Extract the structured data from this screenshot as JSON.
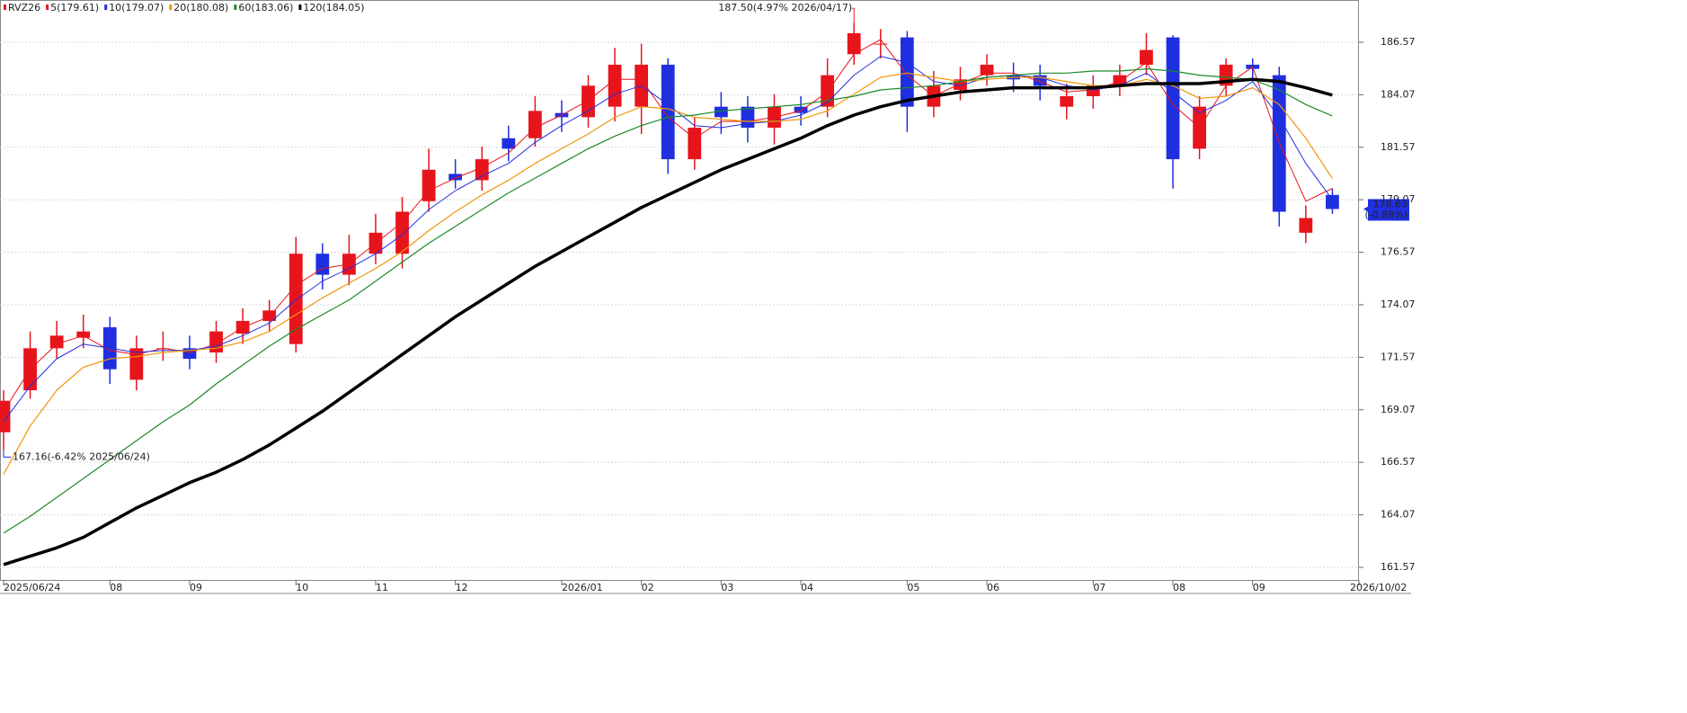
{
  "chart_data": {
    "type": "candlestick",
    "symbol": "RVZ26",
    "symbol_color": "#e8141c",
    "up_color": "#e8141c",
    "down_color": "#1f2fe0",
    "categories": [
      "2025/06/24",
      null,
      null,
      null,
      "08",
      null,
      null,
      "09",
      null,
      null,
      null,
      "10",
      null,
      null,
      "11",
      null,
      null,
      "12",
      null,
      null,
      null,
      "2026/01",
      null,
      null,
      "02",
      null,
      null,
      "03",
      null,
      null,
      "04",
      null,
      null,
      null,
      "05",
      null,
      null,
      "06",
      null,
      null,
      null,
      "07",
      null,
      null,
      "08",
      null,
      null,
      "09",
      null,
      null,
      null,
      "2026/10/02"
    ],
    "open": [
      168.0,
      170.0,
      172.0,
      172.5,
      173.0,
      170.5,
      172.0,
      172.0,
      171.8,
      172.7,
      173.3,
      172.2,
      176.5,
      175.5,
      176.5,
      176.5,
      179.0,
      180.3,
      180.0,
      182.0,
      182.0,
      183.2,
      183.0,
      183.5,
      183.5,
      185.5,
      181.0,
      183.5,
      183.5,
      182.5,
      183.5,
      183.5,
      186.0,
      186.5,
      186.8,
      183.5,
      184.3,
      185.0,
      185.0,
      185.0,
      183.5,
      184.0,
      184.5,
      185.5,
      186.8,
      181.5,
      184.5,
      185.5,
      185.0,
      177.5,
      179.3,
      null
    ],
    "high": [
      170.0,
      172.8,
      173.3,
      173.6,
      173.5,
      172.6,
      172.8,
      172.6,
      173.3,
      173.9,
      174.3,
      177.3,
      177.0,
      177.4,
      178.4,
      179.2,
      181.5,
      181.0,
      181.6,
      182.6,
      184.0,
      183.8,
      185.0,
      186.3,
      186.5,
      185.8,
      183.0,
      184.2,
      184.0,
      184.1,
      184.0,
      185.8,
      187.5,
      187.2,
      187.1,
      185.2,
      185.4,
      186.0,
      185.6,
      185.5,
      184.6,
      185.0,
      185.5,
      187.0,
      186.9,
      184.0,
      185.8,
      185.8,
      185.4,
      178.8,
      179.6,
      null
    ],
    "low": [
      167.16,
      169.6,
      171.5,
      172.0,
      170.3,
      170.0,
      171.4,
      171.0,
      171.3,
      172.2,
      172.8,
      171.8,
      174.8,
      175.0,
      176.0,
      175.8,
      178.5,
      179.6,
      179.5,
      180.9,
      181.6,
      182.3,
      182.5,
      182.8,
      182.2,
      180.3,
      180.5,
      182.2,
      181.8,
      181.7,
      182.6,
      183.0,
      185.5,
      185.8,
      182.3,
      183.0,
      183.8,
      184.5,
      184.2,
      183.8,
      182.9,
      183.4,
      184.0,
      185.0,
      179.6,
      181.0,
      184.0,
      184.8,
      177.8,
      177.0,
      178.4,
      null
    ],
    "close": [
      169.5,
      172.0,
      172.6,
      172.8,
      171.0,
      172.0,
      172.0,
      171.5,
      172.8,
      173.3,
      173.8,
      176.5,
      175.5,
      176.5,
      177.5,
      178.5,
      180.5,
      180.0,
      181.0,
      181.5,
      183.3,
      183.0,
      184.5,
      185.5,
      185.5,
      181.0,
      182.5,
      183.0,
      182.5,
      183.5,
      183.2,
      185.0,
      187.0,
      186.5,
      183.5,
      184.5,
      184.8,
      185.5,
      184.8,
      184.5,
      184.0,
      184.5,
      185.0,
      186.2,
      181.0,
      183.5,
      185.5,
      185.3,
      178.5,
      178.2,
      178.63,
      null
    ],
    "series": [
      {
        "name": "5(179.61)",
        "color": "#e8141c",
        "values": [
          169.0,
          171.0,
          172.2,
          172.6,
          171.9,
          171.7,
          172.0,
          171.8,
          172.2,
          173.0,
          173.5,
          175.0,
          175.8,
          176.0,
          177.0,
          178.0,
          179.5,
          180.1,
          180.6,
          181.3,
          182.5,
          183.1,
          183.8,
          184.8,
          184.8,
          183.0,
          182.0,
          182.8,
          182.8,
          183.0,
          183.3,
          184.2,
          186.0,
          186.7,
          185.0,
          184.0,
          184.6,
          185.1,
          185.1,
          184.7,
          184.2,
          184.3,
          184.7,
          185.6,
          183.6,
          182.5,
          184.5,
          185.4,
          181.8,
          179.0,
          179.61,
          null
        ]
      },
      {
        "name": "10(179.07)",
        "color": "#2030e0",
        "values": [
          168.5,
          170.2,
          171.5,
          172.2,
          172.0,
          171.8,
          171.9,
          171.9,
          172.1,
          172.6,
          173.2,
          174.3,
          175.2,
          175.8,
          176.5,
          177.4,
          178.6,
          179.5,
          180.2,
          180.8,
          181.8,
          182.6,
          183.3,
          184.1,
          184.5,
          183.6,
          182.6,
          182.5,
          182.7,
          182.8,
          183.1,
          183.7,
          185.0,
          185.9,
          185.6,
          184.7,
          184.5,
          184.9,
          185.0,
          184.9,
          184.5,
          184.3,
          184.5,
          185.1,
          184.2,
          183.2,
          183.8,
          184.7,
          183.0,
          180.8,
          179.07,
          null
        ]
      },
      {
        "name": "20(180.08)",
        "color": "#f0960a",
        "values": [
          166.0,
          168.3,
          170.0,
          171.1,
          171.5,
          171.6,
          171.8,
          171.9,
          172.0,
          172.3,
          172.8,
          173.6,
          174.4,
          175.1,
          175.8,
          176.6,
          177.6,
          178.5,
          179.3,
          180.0,
          180.8,
          181.5,
          182.2,
          183.0,
          183.5,
          183.4,
          183.0,
          182.9,
          182.8,
          182.8,
          182.9,
          183.3,
          184.1,
          184.9,
          185.1,
          184.9,
          184.7,
          184.8,
          184.9,
          184.9,
          184.7,
          184.5,
          184.5,
          184.8,
          184.5,
          183.9,
          184.0,
          184.4,
          183.6,
          182.0,
          180.08,
          null
        ]
      },
      {
        "name": "60(183.06)",
        "color": "#1a8a2a",
        "values": [
          163.2,
          164.0,
          164.9,
          165.8,
          166.7,
          167.6,
          168.5,
          169.3,
          170.3,
          171.2,
          172.1,
          172.9,
          173.6,
          174.3,
          175.2,
          176.1,
          177.0,
          177.8,
          178.6,
          179.4,
          180.1,
          180.8,
          181.5,
          182.1,
          182.6,
          183.0,
          183.1,
          183.3,
          183.4,
          183.5,
          183.6,
          183.8,
          184.0,
          184.3,
          184.4,
          184.5,
          184.7,
          184.9,
          185.0,
          185.1,
          185.1,
          185.2,
          185.2,
          185.3,
          185.2,
          185.0,
          184.9,
          184.8,
          184.3,
          183.6,
          183.06,
          null
        ]
      },
      {
        "name": "120(184.05)",
        "color": "#000000",
        "values": [
          161.7,
          162.1,
          162.5,
          163.0,
          163.7,
          164.4,
          165.0,
          165.6,
          166.1,
          166.7,
          167.4,
          168.2,
          169.0,
          169.9,
          170.8,
          171.7,
          172.6,
          173.5,
          174.3,
          175.1,
          175.9,
          176.6,
          177.3,
          178.0,
          178.7,
          179.3,
          179.9,
          180.5,
          181.0,
          181.5,
          182.0,
          182.6,
          183.1,
          183.5,
          183.8,
          184.0,
          184.2,
          184.3,
          184.4,
          184.4,
          184.4,
          184.4,
          184.5,
          184.6,
          184.6,
          184.6,
          184.7,
          184.8,
          184.7,
          184.4,
          184.05,
          null
        ]
      }
    ],
    "high_label": "187.50(4.97% 2026/04/17)",
    "low_label": "167.16(-6.42% 2025/06/24)",
    "last_price_label": "178.63",
    "last_change_label": "(-0.88%)",
    "last_tag_color": "#1f2fe0",
    "ylim": [
      160.97,
      188.58
    ],
    "yticks": [
      161.57,
      164.07,
      166.57,
      169.07,
      171.57,
      174.07,
      176.57,
      179.07,
      181.57,
      184.07,
      186.57
    ],
    "grid": true
  }
}
